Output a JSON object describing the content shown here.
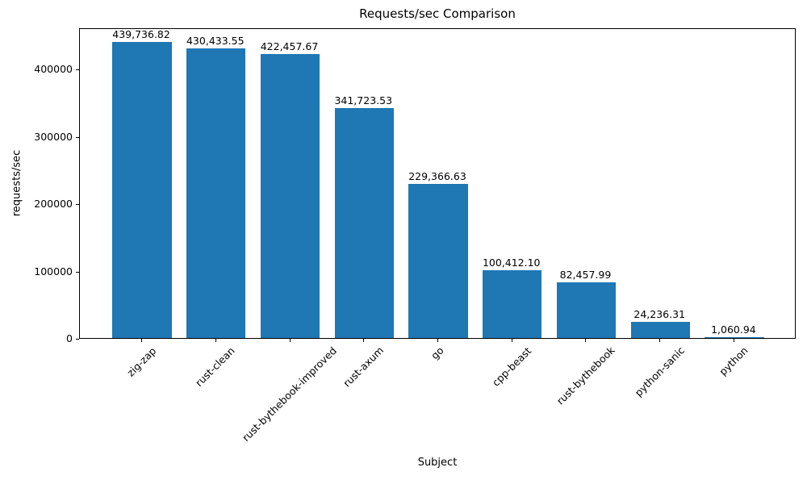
{
  "chart_data": {
    "type": "bar",
    "title": "Requests/sec Comparison",
    "xlabel": "Subject",
    "ylabel": "requests/sec",
    "categories": [
      "zig-zap",
      "rust-clean",
      "rust-bythebook-improved",
      "rust-axum",
      "go",
      "cpp-beast",
      "rust-bythebook",
      "python-sanic",
      "python"
    ],
    "values": [
      439736.82,
      430433.55,
      422457.67,
      341723.53,
      229366.63,
      100412.1,
      82457.99,
      24236.31,
      1060.94
    ],
    "value_labels": [
      "439,736.82",
      "430,433.55",
      "422,457.67",
      "341,723.53",
      "229,366.63",
      "100,412.10",
      "82,457.99",
      "24,236.31",
      "1,060.94"
    ],
    "yticks": [
      0,
      100000,
      200000,
      300000,
      400000
    ],
    "ytick_labels": [
      "0",
      "100000",
      "200000",
      "300000",
      "400000"
    ],
    "ylim": [
      0,
      461723.66
    ],
    "bar_color": "#1f77b4",
    "bar_width_fraction": 0.8,
    "grid": false,
    "legend": null,
    "xtick_rotation_deg": 45
  }
}
